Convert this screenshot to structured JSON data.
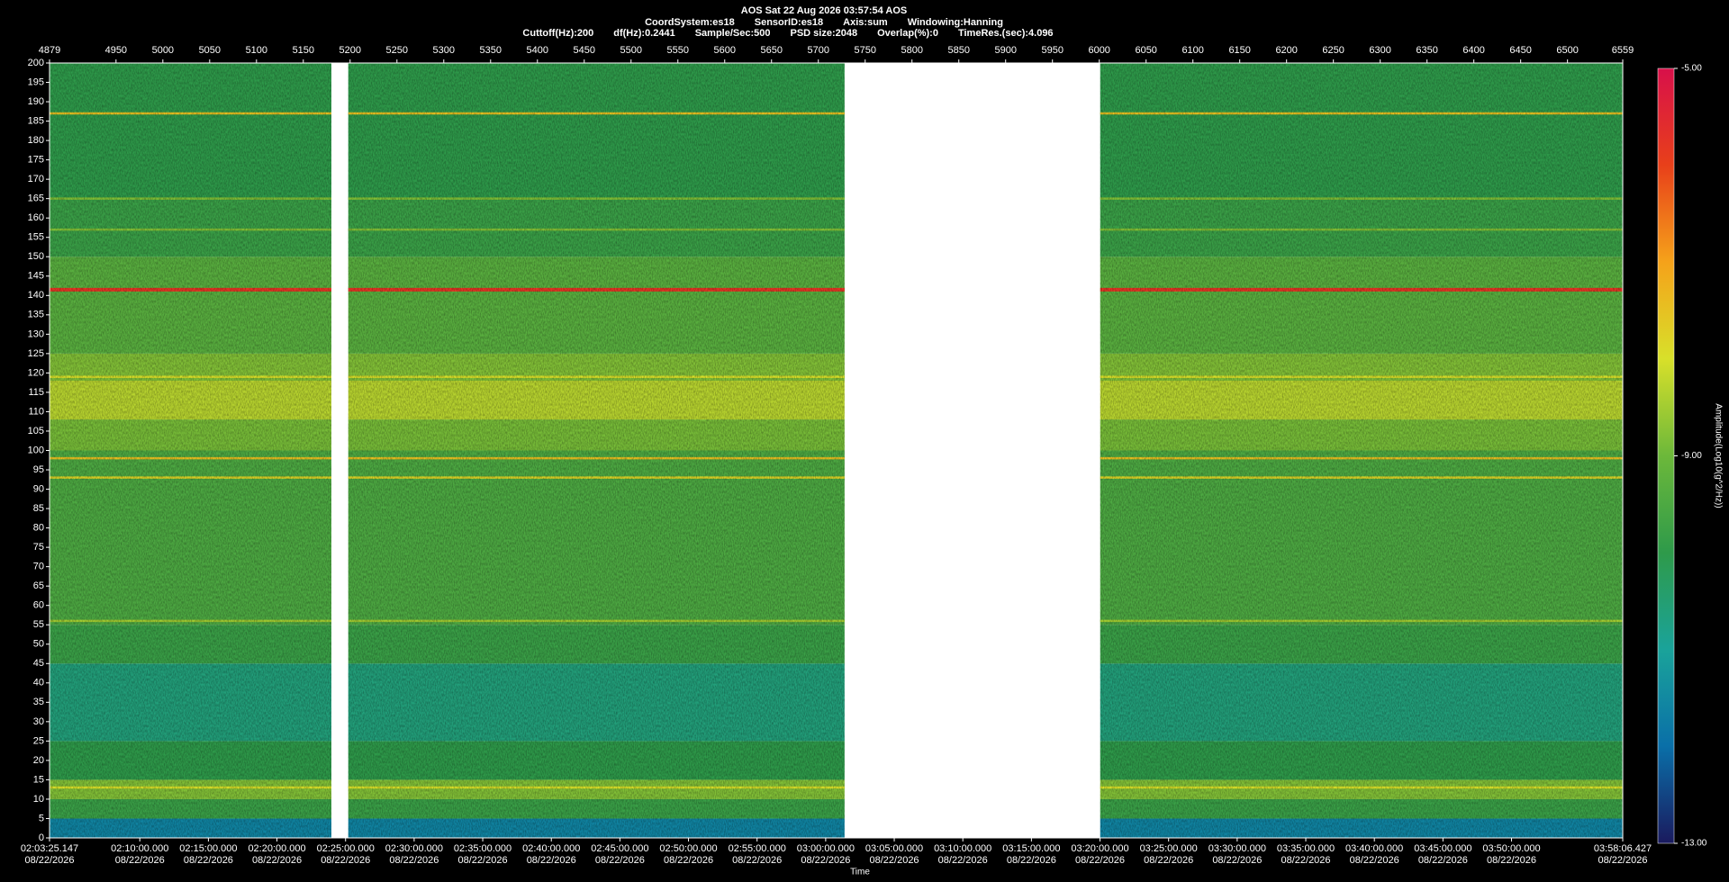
{
  "chart_data": {
    "type": "spectrogram",
    "title": "AOS  Sat 22 Aug 2026 03:57:54  AOS",
    "info_line1": [
      "CoordSystem:es18",
      "SensorID:es18",
      "Axis:sum",
      "Windowing:Hanning"
    ],
    "info_line2": [
      "Cuttoff(Hz):200",
      "df(Hz):0.2441",
      "Sample/Sec:500",
      "PSD size:2048",
      "Overlap(%):0",
      "TimeRes.(sec):4.096"
    ],
    "xlabel": "Time",
    "xlim": [
      7405.147,
      14286.427
    ],
    "xticks": [
      {
        "value": 7405.147,
        "label": "02:03:25.147"
      },
      {
        "value": 7800,
        "label": "02:10:00.000"
      },
      {
        "value": 8100,
        "label": "02:15:00.000"
      },
      {
        "value": 8400,
        "label": "02:20:00.000"
      },
      {
        "value": 8700,
        "label": "02:25:00.000"
      },
      {
        "value": 9000,
        "label": "02:30:00.000"
      },
      {
        "value": 9300,
        "label": "02:35:00.000"
      },
      {
        "value": 9600,
        "label": "02:40:00.000"
      },
      {
        "value": 9900,
        "label": "02:45:00.000"
      },
      {
        "value": 10200,
        "label": "02:50:00.000"
      },
      {
        "value": 10500,
        "label": "02:55:00.000"
      },
      {
        "value": 10800,
        "label": "03:00:00.000"
      },
      {
        "value": 11100,
        "label": "03:05:00.000"
      },
      {
        "value": 11400,
        "label": "03:10:00.000"
      },
      {
        "value": 11700,
        "label": "03:15:00.000"
      },
      {
        "value": 12000,
        "label": "03:20:00.000"
      },
      {
        "value": 12300,
        "label": "03:25:00.000"
      },
      {
        "value": 12600,
        "label": "03:30:00.000"
      },
      {
        "value": 12900,
        "label": "03:35:00.000"
      },
      {
        "value": 13200,
        "label": "03:40:00.000"
      },
      {
        "value": 13500,
        "label": "03:45:00.000"
      },
      {
        "value": 13800,
        "label": "03:50:00.000"
      },
      {
        "value": 14286.427,
        "label": "03:58:06.427"
      }
    ],
    "xtick_date": "08/22/2026",
    "x2lim": [
      4879,
      6559
    ],
    "x2ticks": [
      4879,
      4950,
      5000,
      5050,
      5100,
      5150,
      5200,
      5250,
      5300,
      5350,
      5400,
      5450,
      5500,
      5550,
      5600,
      5650,
      5700,
      5750,
      5800,
      5850,
      5900,
      5950,
      6000,
      6050,
      6100,
      6150,
      6200,
      6250,
      6300,
      6350,
      6400,
      6450,
      6500,
      6559
    ],
    "ylim": [
      0,
      200
    ],
    "yticks": [
      0,
      5,
      10,
      15,
      20,
      25,
      30,
      35,
      40,
      45,
      50,
      55,
      60,
      65,
      70,
      75,
      80,
      85,
      90,
      95,
      100,
      105,
      110,
      115,
      120,
      125,
      130,
      135,
      140,
      145,
      150,
      155,
      160,
      165,
      170,
      175,
      180,
      185,
      190,
      195,
      200
    ],
    "segments": [
      [
        4879,
        5180
      ],
      [
        5198,
        5728
      ],
      [
        6001,
        6559
      ]
    ],
    "bands": [
      {
        "from": 0,
        "to": 5,
        "amplitude": -11.6
      },
      {
        "from": 5,
        "to": 10,
        "amplitude": -9.8
      },
      {
        "from": 10,
        "to": 15,
        "amplitude": -8.8
      },
      {
        "from": 15,
        "to": 25,
        "amplitude": -10
      },
      {
        "from": 25,
        "to": 45,
        "amplitude": -10.6
      },
      {
        "from": 45,
        "to": 55,
        "amplitude": -9.8
      },
      {
        "from": 55,
        "to": 100,
        "amplitude": -9.5
      },
      {
        "from": 100,
        "to": 108,
        "amplitude": -8.9
      },
      {
        "from": 108,
        "to": 118,
        "amplitude": -8.3
      },
      {
        "from": 118,
        "to": 125,
        "amplitude": -8.8
      },
      {
        "from": 125,
        "to": 150,
        "amplitude": -9.3
      },
      {
        "from": 150,
        "to": 165,
        "amplitude": -9.8
      },
      {
        "from": 165,
        "to": 200,
        "amplitude": -10
      }
    ],
    "lines": [
      {
        "freq": 141.5,
        "amplitude": -5.8
      },
      {
        "freq": 187,
        "amplitude": -7.5
      },
      {
        "freq": 98,
        "amplitude": -7.5
      },
      {
        "freq": 93,
        "amplitude": -7.8
      },
      {
        "freq": 119,
        "amplitude": -8
      },
      {
        "freq": 56,
        "amplitude": -8.5
      },
      {
        "freq": 157,
        "amplitude": -8.8
      },
      {
        "freq": 165,
        "amplitude": -8.8
      },
      {
        "freq": 13,
        "amplitude": -8
      }
    ],
    "colorbar_label": "Amplitude(Log10(g^2/Hz))",
    "clim": [
      -13,
      -5
    ],
    "cticks": [
      {
        "value": -5,
        "label": "-5.00"
      },
      {
        "value": -9,
        "label": "-9.00"
      },
      {
        "value": -13,
        "label": "-13.00"
      }
    ],
    "colormap": [
      "#1a1a5e",
      "#0a6fa8",
      "#1aa39a",
      "#2e9a4a",
      "#6cb83a",
      "#d8e02a",
      "#f5a21a",
      "#e8401a",
      "#d8104a"
    ],
    "gap_color": "#ffffff"
  }
}
